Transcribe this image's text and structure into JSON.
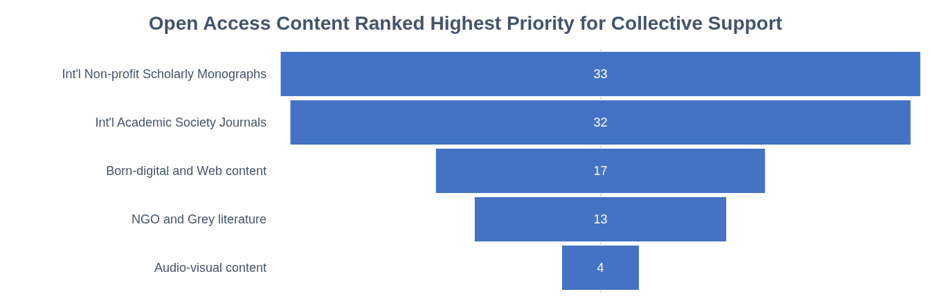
{
  "chart_data": {
    "type": "other",
    "title": "Open Access Content Ranked Highest Priority for Collective Support",
    "categories": [
      "Int'l Non-profit Scholarly Monographs",
      "Int'l Academic Society Journals",
      "Born-digital and Web content",
      "NGO and Grey literature",
      "Audio-visual content"
    ],
    "values": [
      33,
      32,
      17,
      13,
      4
    ],
    "color": "#4472c4",
    "data_labels": true
  }
}
